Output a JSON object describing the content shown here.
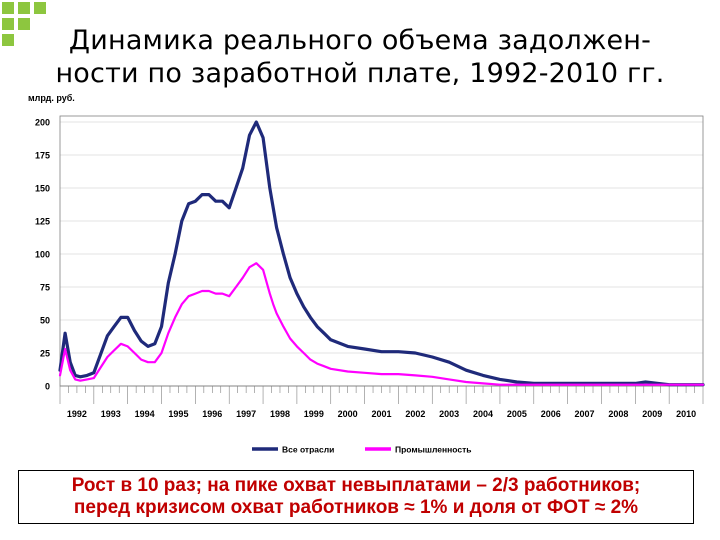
{
  "page": {
    "title_line1": "Динамика реального объема задолжен-",
    "title_line2": "ности по заработной плате, 1992-2010 гг.",
    "footer_line1": "Рост в 10 раз; на пике охват невыплатами – 2/3 работников;",
    "footer_line2": "перед кризисом охват работников ≈ 1% и доля от ФОТ ≈ 2%"
  },
  "colors": {
    "all_industries": "#1f2a7a",
    "industry": "#ff00ff",
    "corner": "#8dc63f"
  },
  "chart_data": {
    "type": "line",
    "title": "",
    "ylabel": "млрд. руб.",
    "xlabel": "",
    "ylim": [
      0,
      200
    ],
    "xlim": [
      1992,
      2011
    ],
    "yticks": [
      0,
      25,
      50,
      75,
      100,
      125,
      150,
      175,
      200
    ],
    "year_labels": [
      "1992",
      "1993",
      "1994",
      "1995",
      "1996",
      "1997",
      "1998",
      "1999",
      "2000",
      "2001",
      "2002",
      "2003",
      "2004",
      "2005",
      "2006",
      "2007",
      "2008",
      "2009",
      "2010"
    ],
    "legend_position": "bottom",
    "series": [
      {
        "name": "Все отрасли",
        "x": [
          1992.0,
          1992.15,
          1992.3,
          1992.45,
          1992.6,
          1992.8,
          1993.0,
          1993.2,
          1993.4,
          1993.6,
          1993.8,
          1994.0,
          1994.2,
          1994.4,
          1994.6,
          1994.8,
          1995.0,
          1995.2,
          1995.4,
          1995.6,
          1995.8,
          1996.0,
          1996.2,
          1996.4,
          1996.6,
          1996.8,
          1997.0,
          1997.2,
          1997.4,
          1997.6,
          1997.8,
          1998.0,
          1998.2,
          1998.3,
          1998.4,
          1998.6,
          1998.8,
          1999.0,
          1999.2,
          1999.4,
          1999.6,
          1999.8,
          2000.0,
          2000.5,
          2001.0,
          2001.5,
          2002.0,
          2002.5,
          2003.0,
          2003.5,
          2004.0,
          2004.5,
          2005.0,
          2005.5,
          2006.0,
          2007.0,
          2008.0,
          2009.0,
          2009.3,
          2010.0,
          2011.0
        ],
        "values": [
          12,
          40,
          18,
          8,
          7,
          8,
          10,
          24,
          38,
          45,
          52,
          52,
          42,
          34,
          30,
          32,
          45,
          78,
          100,
          125,
          138,
          140,
          145,
          145,
          140,
          140,
          135,
          150,
          165,
          190,
          200,
          188,
          150,
          135,
          120,
          100,
          82,
          70,
          60,
          52,
          45,
          40,
          35,
          30,
          28,
          26,
          26,
          25,
          22,
          18,
          12,
          8,
          5,
          3,
          2,
          2,
          2,
          2,
          3,
          1,
          1
        ]
      },
      {
        "name": "Промышленность",
        "x": [
          1992.0,
          1992.15,
          1992.3,
          1992.45,
          1992.6,
          1992.8,
          1993.0,
          1993.2,
          1993.4,
          1993.6,
          1993.8,
          1994.0,
          1994.2,
          1994.4,
          1994.6,
          1994.8,
          1995.0,
          1995.2,
          1995.4,
          1995.6,
          1995.8,
          1996.0,
          1996.2,
          1996.4,
          1996.6,
          1996.8,
          1997.0,
          1997.2,
          1997.4,
          1997.6,
          1997.8,
          1998.0,
          1998.2,
          1998.3,
          1998.4,
          1998.6,
          1998.8,
          1999.0,
          1999.2,
          1999.4,
          1999.6,
          1999.8,
          2000.0,
          2000.5,
          2001.0,
          2001.5,
          2002.0,
          2002.5,
          2003.0,
          2003.5,
          2004.0,
          2004.5,
          2005.0,
          2005.5,
          2006.0,
          2007.0,
          2008.0,
          2009.0,
          2009.3,
          2010.0,
          2011.0
        ],
        "values": [
          8,
          28,
          12,
          5,
          4,
          5,
          6,
          14,
          22,
          27,
          32,
          30,
          25,
          20,
          18,
          18,
          25,
          40,
          52,
          62,
          68,
          70,
          72,
          72,
          70,
          70,
          68,
          75,
          82,
          90,
          93,
          88,
          70,
          62,
          55,
          45,
          36,
          30,
          25,
          20,
          17,
          15,
          13,
          11,
          10,
          9,
          9,
          8,
          7,
          5,
          3,
          2,
          1,
          1,
          1,
          1,
          1,
          1,
          1,
          1,
          1
        ]
      }
    ]
  }
}
